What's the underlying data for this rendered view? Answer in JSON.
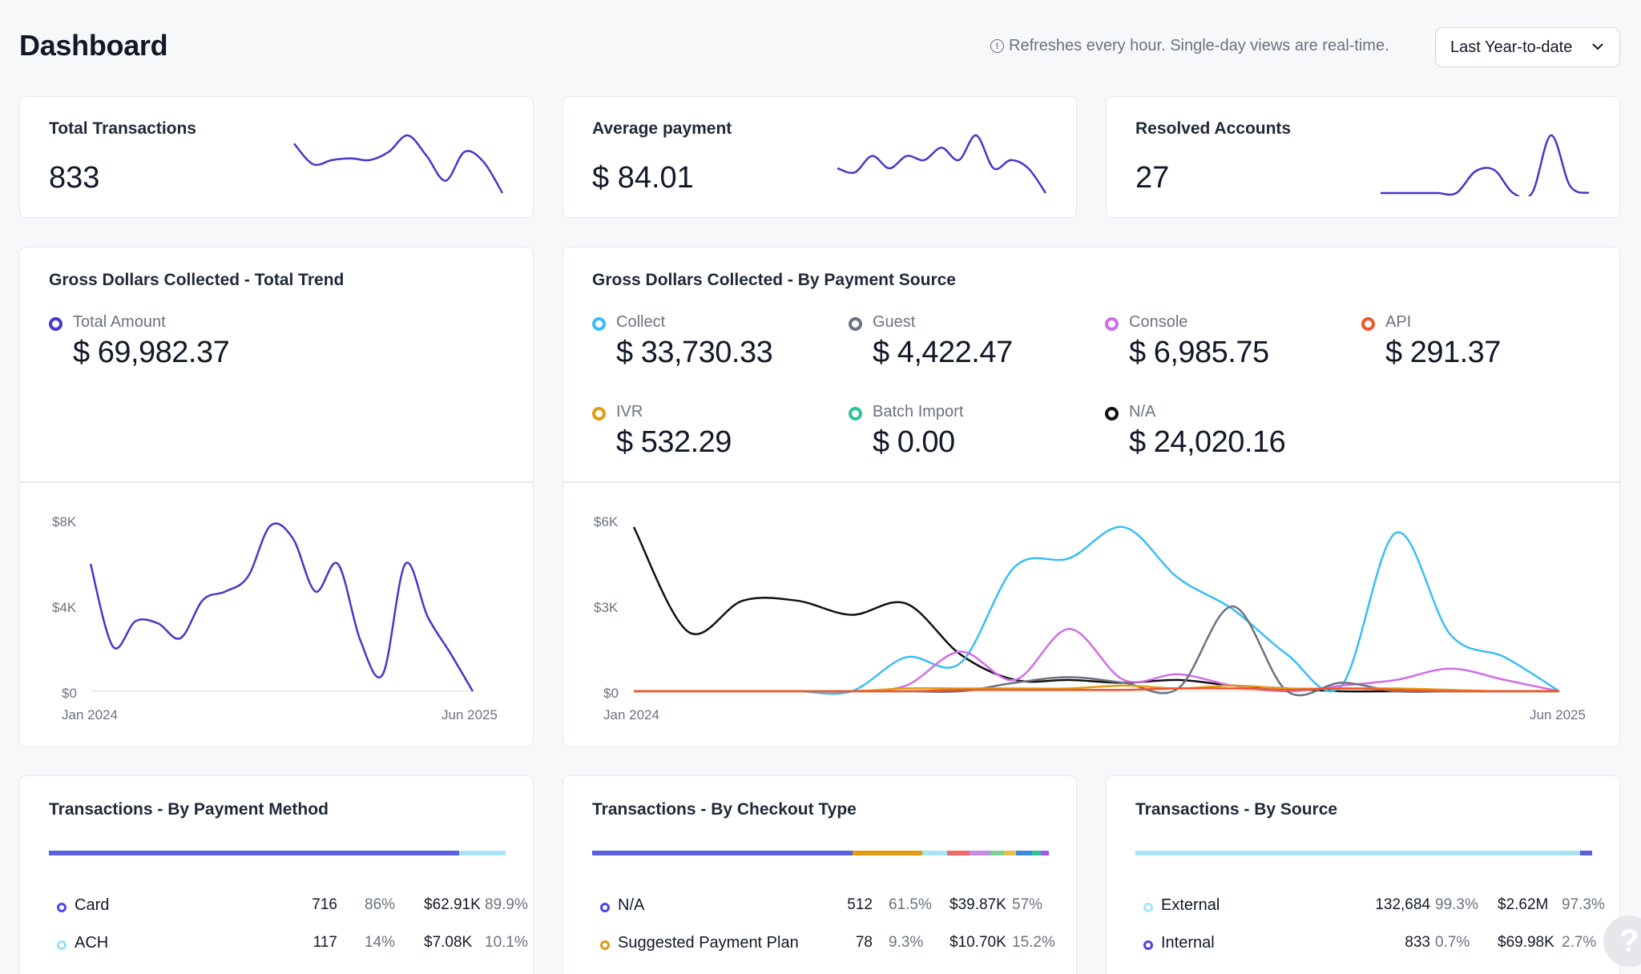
{
  "page": {
    "title": "Dashboard",
    "refresh_note": "Refreshes every hour. Single-day views are real-time.",
    "date_range": "Last Year-to-date"
  },
  "kpis": [
    {
      "title": "Total Transactions",
      "value": "833"
    },
    {
      "title": "Average payment",
      "value": "$ 84.01"
    },
    {
      "title": "Resolved Accounts",
      "value": "27"
    }
  ],
  "total_trend": {
    "title": "Gross Dollars Collected - Total Trend",
    "legend_label": "Total Amount",
    "legend_value": "$ 69,982.37",
    "color": "#4338ca"
  },
  "by_source": {
    "title": "Gross Dollars Collected - By Payment Source",
    "legend": [
      {
        "label": "Collect",
        "value": "$ 33,730.33",
        "color": "#38bdf8"
      },
      {
        "label": "Guest",
        "value": "$ 4,422.47",
        "color": "#6b7280"
      },
      {
        "label": "Console",
        "value": "$ 6,985.75",
        "color": "#d16de8"
      },
      {
        "label": "API",
        "value": "$ 291.37",
        "color": "#f0552c"
      },
      {
        "label": "IVR",
        "value": "$ 532.29",
        "color": "#e49b14"
      },
      {
        "label": "Batch Import",
        "value": "$ 0.00",
        "color": "#2bc49a"
      },
      {
        "label": "N/A",
        "value": "$ 24,020.16",
        "color": "#111111"
      }
    ]
  },
  "chart_data": [
    {
      "type": "line",
      "title": "Gross Dollars Collected - Total Trend",
      "y_ticks": [
        "$8K",
        "$4K",
        "$0"
      ],
      "ylim": [
        0,
        8000
      ],
      "x_labels": [
        "Jan 2024",
        "Jun 2025"
      ],
      "series": [
        {
          "name": "Total Amount",
          "color": "#4338ca",
          "values": [
            6000,
            2100,
            3300,
            3200,
            2500,
            4300,
            4700,
            5400,
            7800,
            7200,
            4700,
            6000,
            2400,
            800,
            6000,
            3500,
            1800,
            0
          ]
        }
      ]
    },
    {
      "type": "line",
      "title": "Gross Dollars Collected - By Payment Source",
      "y_ticks": [
        "$6K",
        "$3K",
        "$0"
      ],
      "ylim": [
        0,
        6000
      ],
      "x_labels": [
        "Jan 2024",
        "Jun 2025"
      ],
      "series": [
        {
          "name": "N/A",
          "color": "#111111",
          "values": [
            5800,
            2100,
            3200,
            3200,
            2700,
            3100,
            1300,
            400,
            400,
            300,
            400,
            200,
            100,
            0,
            0,
            0,
            0,
            0
          ]
        },
        {
          "name": "Collect",
          "color": "#38bdf8",
          "values": [
            0,
            0,
            0,
            0,
            0,
            1200,
            1000,
            4400,
            4700,
            5800,
            4000,
            2900,
            1300,
            200,
            5600,
            2000,
            1200,
            0
          ]
        },
        {
          "name": "Console",
          "color": "#d16de8",
          "values": [
            0,
            0,
            0,
            0,
            0,
            200,
            1400,
            400,
            2200,
            400,
            600,
            200,
            0,
            200,
            400,
            800,
            400,
            0
          ]
        },
        {
          "name": "Guest",
          "color": "#6b7280",
          "values": [
            0,
            0,
            0,
            0,
            0,
            0,
            0,
            300,
            500,
            300,
            100,
            3000,
            0,
            300,
            0,
            0,
            0,
            0
          ]
        },
        {
          "name": "IVR",
          "color": "#e49b14",
          "values": [
            0,
            0,
            0,
            0,
            0,
            100,
            100,
            100,
            100,
            200,
            100,
            200,
            100,
            100,
            100,
            50,
            0,
            0
          ]
        },
        {
          "name": "API",
          "color": "#f0552c",
          "values": [
            0,
            0,
            0,
            0,
            0,
            0,
            50,
            50,
            50,
            50,
            100,
            100,
            50,
            100,
            50,
            0,
            0,
            0
          ]
        }
      ]
    }
  ],
  "sparklines": [
    {
      "name": "Total Transactions",
      "color": "#4338ca",
      "values": [
        60,
        35,
        40,
        42,
        40,
        50,
        70,
        45,
        15,
        50,
        38,
        0
      ]
    },
    {
      "name": "Average payment",
      "color": "#4338ca",
      "values": [
        30,
        25,
        45,
        30,
        45,
        40,
        55,
        40,
        70,
        30,
        40,
        30,
        0
      ]
    },
    {
      "name": "Resolved Accounts",
      "color": "#4338ca",
      "values": [
        0,
        0,
        0,
        0,
        0,
        30,
        32,
        0,
        0,
        80,
        10,
        0
      ]
    }
  ],
  "payment_method": {
    "title": "Transactions - By Payment Method",
    "bar": [
      {
        "color": "#5a5fe0",
        "share": 89.9
      },
      {
        "color": "#a8e4f8",
        "share": 10.1
      }
    ],
    "rows": [
      {
        "name": "Card",
        "count": "716",
        "pct": "86%",
        "amount": "$62.91K",
        "amount_pct": "89.9%",
        "color": "#4f46e5"
      },
      {
        "name": "ACH",
        "count": "117",
        "pct": "14%",
        "amount": "$7.08K",
        "amount_pct": "10.1%",
        "color": "#9be0f5"
      }
    ]
  },
  "checkout_type": {
    "title": "Transactions - By Checkout Type",
    "bar": [
      {
        "color": "#5a5fe0",
        "share": 57
      },
      {
        "color": "#e49b14",
        "share": 15.2
      },
      {
        "color": "#a8e4f8",
        "share": 5.5
      },
      {
        "color": "#f06a6a",
        "share": 5
      },
      {
        "color": "#c78ae6",
        "share": 4.5
      },
      {
        "color": "#7bd38f",
        "share": 3
      },
      {
        "color": "#e8c04a",
        "share": 2.6
      },
      {
        "color": "#3f88e0",
        "share": 3.5
      },
      {
        "color": "#2bc49a",
        "share": 2
      },
      {
        "color": "#a855f7",
        "share": 1.7
      }
    ],
    "rows": [
      {
        "name": "N/A",
        "count": "512",
        "pct": "61.5%",
        "amount": "$39.87K",
        "amount_pct": "57%",
        "color": "#4f46e5"
      },
      {
        "name": "Suggested Payment Plan",
        "count": "78",
        "pct": "9.3%",
        "amount": "$10.70K",
        "amount_pct": "15.2%",
        "color": "#e49b14"
      }
    ]
  },
  "by_source_tx": {
    "title": "Transactions - By Source",
    "bar": [
      {
        "color": "#a8e4f8",
        "share": 97.3
      },
      {
        "color": "#5a5fe0",
        "share": 2.7
      }
    ],
    "rows": [
      {
        "name": "External",
        "count": "132,684",
        "pct": "99.3%",
        "amount": "$2.62M",
        "amount_pct": "97.3%",
        "color": "#a8e4f8"
      },
      {
        "name": "Internal",
        "count": "833",
        "pct": "0.7%",
        "amount": "$69.98K",
        "amount_pct": "2.7%",
        "color": "#4f46e5"
      }
    ]
  },
  "help": {
    "label": "?"
  }
}
